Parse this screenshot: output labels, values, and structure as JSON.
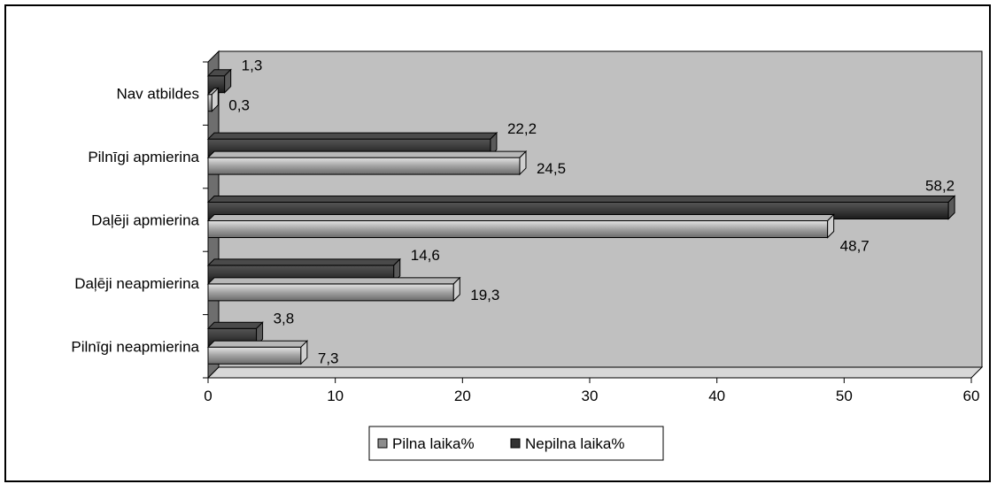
{
  "chart_data": {
    "type": "bar",
    "orientation": "horizontal",
    "three_d": true,
    "categories": [
      "Nav atbildes",
      "Pilnīgi apmierina",
      "Daļēji apmierina",
      "Daļēji neapmierina",
      "Pilnīgi neapmierina"
    ],
    "series": [
      {
        "name": "Pilna laika%",
        "values": [
          0.3,
          24.5,
          48.7,
          19.3,
          7.3
        ],
        "value_labels": [
          "0,3",
          "24,5",
          "48,7",
          "19,3",
          "7,3"
        ],
        "color": "#8c8c8c"
      },
      {
        "name": "Nepilna laika%",
        "values": [
          1.3,
          22.2,
          58.2,
          14.6,
          3.8
        ],
        "value_labels": [
          "1,3",
          "22,2",
          "58,2",
          "14,6",
          "3,8"
        ],
        "color": "#333333"
      }
    ],
    "xlim": [
      0,
      60
    ],
    "x_ticks": [
      "0",
      "10",
      "20",
      "30",
      "40",
      "50",
      "60"
    ],
    "title": "",
    "xlabel": "",
    "ylabel": "",
    "grid": false,
    "legend_position": "bottom",
    "plot_background": "#c0c0c0"
  }
}
